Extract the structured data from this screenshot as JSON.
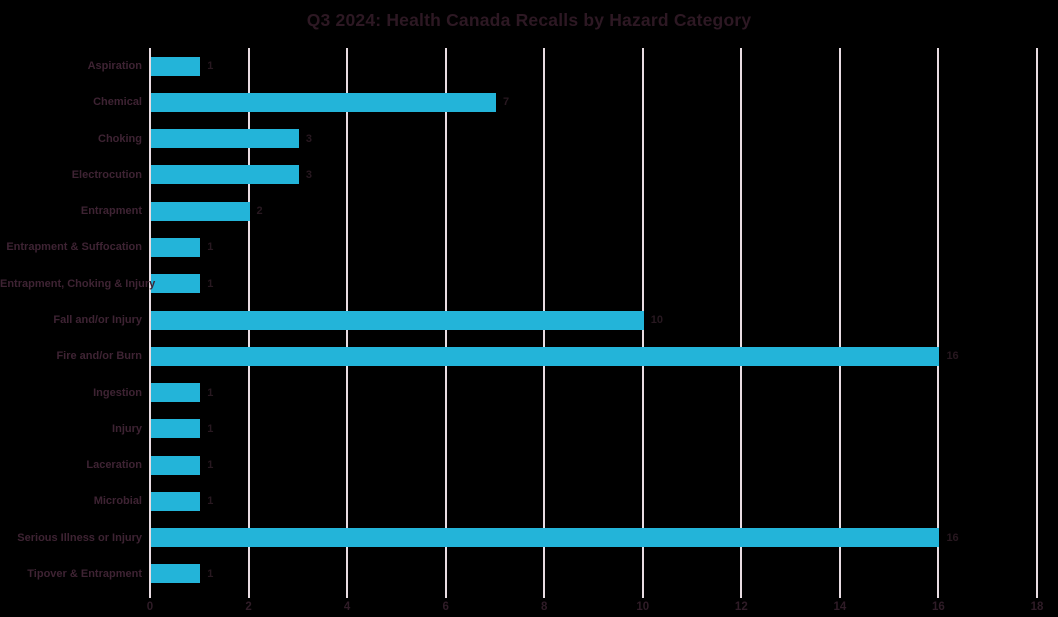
{
  "title": "Q3 2024: Health Canada Recalls by Hazard Category",
  "colors": {
    "background": "#000000",
    "bar": "#23b4d9",
    "gridline": "#e8dce2",
    "title_text": "#2d1823",
    "category_text": "#3e2333",
    "value_text": "#281820",
    "tick_text": "#2f1c27"
  },
  "chart_data": {
    "type": "bar",
    "orientation": "horizontal",
    "title": "Q3 2024: Health Canada Recalls by Hazard Category",
    "categories": [
      "Aspiration",
      "Chemical",
      "Choking",
      "Electrocution",
      "Entrapment",
      "Entrapment & Suffocation",
      "Entrapment, Choking & Injury",
      "Fall and/or Injury",
      "Fire and/or Burn",
      "Ingestion",
      "Injury",
      "Laceration",
      "Microbial",
      "Serious Illness or Injury",
      "Tipover & Entrapment"
    ],
    "values": [
      1,
      7,
      3,
      3,
      2,
      1,
      1,
      10,
      16,
      1,
      1,
      1,
      1,
      16,
      1
    ],
    "data_labels": [
      1,
      7,
      3,
      3,
      2,
      1,
      1,
      10,
      16,
      1,
      1,
      1,
      1,
      16,
      1
    ],
    "xlabel": "",
    "ylabel": "",
    "xlim": [
      0,
      18
    ],
    "xticks": [
      0,
      2,
      4,
      6,
      8,
      10,
      12,
      14,
      16,
      18
    ],
    "grid": true,
    "legend": false
  }
}
